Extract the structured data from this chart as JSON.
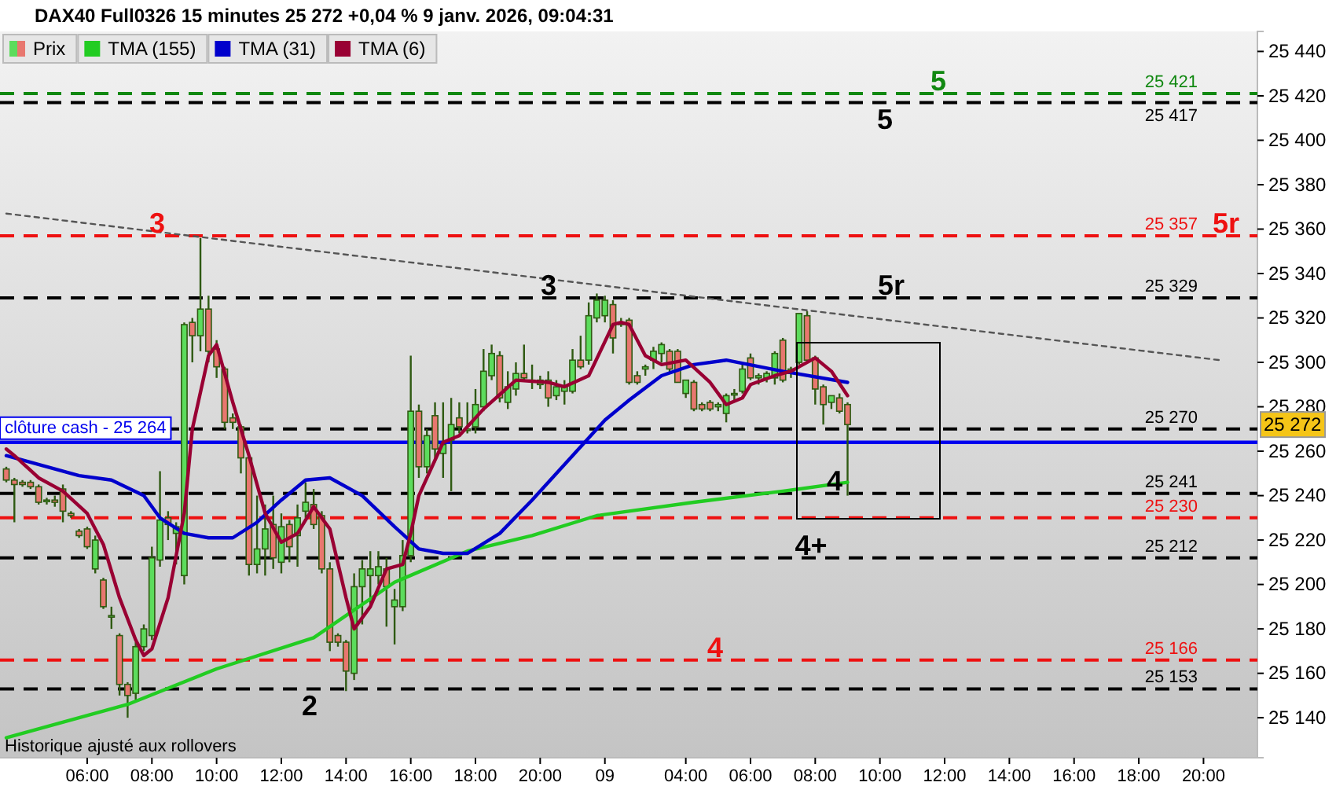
{
  "chart_data": {
    "type": "candlestick",
    "title": "DAX40 Full0326 15 minutes 25 272 +0,04 % 9 janv. 2026, 09:04:31",
    "categories": [
      null,
      null,
      null,
      null,
      null,
      null,
      null,
      null,
      null,
      null,
      "06:00",
      null,
      null,
      null,
      null,
      null,
      null,
      null,
      "08:00",
      null,
      null,
      null,
      null,
      null,
      null,
      null,
      "10:00",
      null,
      null,
      null,
      null,
      null,
      null,
      null,
      "12:00",
      null,
      null,
      null,
      null,
      null,
      null,
      null,
      "14:00",
      null,
      null,
      null,
      null,
      null,
      null,
      null,
      "16:00",
      null,
      null,
      null,
      null,
      null,
      null,
      null,
      "18:00",
      null,
      null,
      null,
      null,
      null,
      null,
      null,
      "20:00",
      null,
      null,
      null,
      null,
      null,
      null,
      null,
      "09",
      null,
      null,
      null,
      null,
      null,
      null,
      null,
      null,
      null,
      "04:00",
      null,
      null,
      null,
      null,
      null,
      null,
      null,
      "06:00",
      null,
      null,
      null,
      null,
      null,
      null,
      null,
      "08:00",
      null,
      null,
      null,
      null,
      null,
      null,
      null,
      "10:00",
      null,
      null,
      null,
      null,
      null,
      null,
      null,
      "12:00",
      null,
      null,
      null,
      null,
      null,
      null,
      null,
      "14:00",
      null,
      null,
      null,
      null,
      null,
      null,
      null,
      "16:00",
      null,
      null,
      null,
      null,
      null,
      null,
      null,
      "18:00",
      null,
      null,
      null,
      null,
      null,
      null,
      null,
      "20:00",
      null,
      null
    ],
    "ylim": [
      25122,
      25449
    ],
    "yticks": [
      {
        "value": 25140,
        "label": "25 140"
      },
      {
        "value": 25160,
        "label": "25 160"
      },
      {
        "value": 25180,
        "label": "25 180"
      },
      {
        "value": 25200,
        "label": "25 200"
      },
      {
        "value": 25220,
        "label": "25 220"
      },
      {
        "value": 25240,
        "label": "25 240"
      },
      {
        "value": 25260,
        "label": "25 260"
      },
      {
        "value": 25280,
        "label": "25 280"
      },
      {
        "value": 25300,
        "label": "25 300"
      },
      {
        "value": 25320,
        "label": "25 320"
      },
      {
        "value": 25340,
        "label": "25 340"
      },
      {
        "value": 25360,
        "label": "25 360"
      },
      {
        "value": 25380,
        "label": "25 380"
      },
      {
        "value": 25400,
        "label": "25 400"
      },
      {
        "value": 25420,
        "label": "25 420"
      },
      {
        "value": 25440,
        "label": "25 440"
      }
    ],
    "tick_labels": true,
    "legend": "top left",
    "series": [
      {
        "name": "Prix",
        "ohlc": [
          [
            25252,
            25253,
            25246,
            25247
          ],
          [
            25247,
            25248,
            25228,
            25245
          ],
          [
            25246,
            25247,
            25244,
            25245
          ],
          [
            25246,
            25247,
            25243,
            25244
          ],
          [
            25244,
            25245,
            25236,
            25237
          ],
          [
            25238,
            25239,
            25236,
            25238
          ],
          [
            25238,
            25240,
            25235,
            25237
          ],
          [
            25243,
            25245,
            25228,
            25233
          ],
          [
            25232,
            25233,
            25230,
            25231
          ],
          [
            25224,
            25225,
            25221,
            25222
          ],
          [
            25225,
            25226,
            25216,
            25217
          ],
          [
            25207,
            25222,
            25205,
            25220
          ],
          [
            25202,
            25203,
            25189,
            25190
          ],
          [
            25186,
            25190,
            25180,
            25186
          ],
          [
            25177,
            25178,
            25150,
            25155
          ],
          [
            25155,
            25156,
            25140,
            25150
          ],
          [
            25151,
            25174,
            25148,
            25172
          ],
          [
            25172,
            25182,
            25170,
            25180
          ],
          [
            25177,
            25217,
            25175,
            25212
          ],
          [
            25211,
            25251,
            25208,
            25229
          ],
          [
            25230,
            25233,
            25220,
            25227
          ],
          [
            25223,
            25228,
            25209,
            25226
          ],
          [
            25204,
            25318,
            25200,
            25317
          ],
          [
            25318,
            25320,
            25300,
            25312
          ],
          [
            25312,
            25356,
            25305,
            25324
          ],
          [
            25324,
            25330,
            25300,
            25305
          ],
          [
            25306,
            25310,
            25293,
            25298
          ],
          [
            25297,
            25298,
            25270,
            25273
          ],
          [
            25275,
            25277,
            25270,
            25273
          ],
          [
            25271,
            25272,
            25250,
            25257
          ],
          [
            25257,
            25258,
            25204,
            25209
          ],
          [
            25209,
            25240,
            25205,
            25216
          ],
          [
            25216,
            25236,
            25204,
            25225
          ],
          [
            25227,
            25240,
            25207,
            25212
          ],
          [
            25210,
            25232,
            25205,
            25226
          ],
          [
            25227,
            25229,
            25210,
            25217
          ],
          [
            25222,
            25236,
            25208,
            25230
          ],
          [
            25233,
            25246,
            25230,
            25237
          ],
          [
            25236,
            25243,
            25225,
            25227
          ],
          [
            25231,
            25233,
            25205,
            25207
          ],
          [
            25207,
            25210,
            25170,
            25174
          ],
          [
            25177,
            25178,
            25172,
            25174
          ],
          [
            25174,
            25175,
            25152,
            25161
          ],
          [
            25160,
            25205,
            25157,
            25199
          ],
          [
            25199,
            25211,
            25182,
            25207
          ],
          [
            25204,
            25215,
            25190,
            25207
          ],
          [
            25204,
            25215,
            25200,
            25208
          ],
          [
            25207,
            25212,
            25181,
            25199
          ],
          [
            25190,
            25198,
            25173,
            25193
          ],
          [
            25190,
            25220,
            25188,
            25213
          ],
          [
            25213,
            25303,
            25210,
            25278
          ],
          [
            25278,
            25281,
            25248,
            25253
          ],
          [
            25253,
            25270,
            25250,
            25267
          ],
          [
            25276,
            25282,
            25255,
            25261
          ],
          [
            25259,
            25282,
            25248,
            25263
          ],
          [
            25265,
            25284,
            25242,
            25272
          ],
          [
            25275,
            25282,
            25268,
            25271
          ],
          [
            25270,
            25282,
            25268,
            25270
          ],
          [
            25271,
            25288,
            25268,
            25281
          ],
          [
            25280,
            25306,
            25278,
            25296
          ],
          [
            25294,
            25308,
            25292,
            25304
          ],
          [
            25303,
            25305,
            25282,
            25284
          ],
          [
            25282,
            25296,
            25279,
            25289
          ],
          [
            25288,
            25300,
            25285,
            25295
          ],
          [
            25295,
            25308,
            25292,
            25293
          ],
          [
            25292,
            25299,
            25288,
            25292
          ],
          [
            25290,
            25294,
            25288,
            25292
          ],
          [
            25292,
            25296,
            25280,
            25284
          ],
          [
            25285,
            25292,
            25283,
            25289
          ],
          [
            25287,
            25292,
            25281,
            25289
          ],
          [
            25287,
            25306,
            25286,
            25301
          ],
          [
            25301,
            25312,
            25297,
            25298
          ],
          [
            25301,
            25327,
            25299,
            25321
          ],
          [
            25320,
            25331,
            25318,
            25328
          ],
          [
            25321,
            25330,
            25318,
            25328
          ],
          [
            25326,
            25328,
            25304,
            25311
          ],
          [
            25318,
            25320,
            25316,
            25317
          ],
          [
            25319,
            25320,
            25290,
            25291
          ],
          [
            25294,
            25296,
            25290,
            25291
          ],
          [
            25297,
            25299,
            25294,
            25298
          ],
          [
            25301,
            25307,
            25297,
            25305
          ],
          [
            25304,
            25309,
            25300,
            25308
          ],
          [
            25305,
            25306,
            25295,
            25297
          ],
          [
            25305,
            25306,
            25291,
            25291
          ],
          [
            25286,
            25292,
            25284,
            25292
          ],
          [
            25291,
            25292,
            25278,
            25279
          ],
          [
            25281,
            25282,
            25278,
            25279
          ],
          [
            25282,
            25283,
            25278,
            25279
          ],
          [
            25280,
            25282,
            25278,
            25281
          ],
          [
            25277,
            25286,
            25273,
            25285
          ],
          [
            25286,
            25288,
            25283,
            25286
          ],
          [
            25287,
            25299,
            25286,
            25297
          ],
          [
            25302,
            25304,
            25292,
            25293
          ],
          [
            25293,
            25295,
            25290,
            25294
          ],
          [
            25293,
            25296,
            25291,
            25295
          ],
          [
            25293,
            25305,
            25290,
            25304
          ],
          [
            25310,
            25311,
            25291,
            25292
          ],
          [
            25295,
            25298,
            25293,
            25297
          ],
          [
            25300,
            25322,
            25299,
            25322
          ],
          [
            25321,
            25323,
            25300,
            25301
          ],
          [
            25302,
            25303,
            25281,
            25288
          ],
          [
            25289,
            25290,
            25272,
            25281
          ],
          [
            25282,
            25285,
            25279,
            25285
          ],
          [
            25284,
            25286,
            25277,
            25278
          ],
          [
            25281,
            25282,
            25240,
            25272
          ],
          null,
          null,
          null,
          null,
          null,
          null,
          null,
          null,
          null,
          null,
          null,
          null,
          null,
          null,
          null,
          null,
          null,
          null,
          null,
          null,
          null,
          null,
          null,
          null,
          null,
          null,
          null,
          null,
          null,
          null,
          null,
          null,
          null,
          null,
          null,
          null,
          null,
          null,
          null,
          null,
          null,
          null,
          null,
          null,
          null,
          null
        ]
      },
      {
        "name": "TMA (155)",
        "type": "line",
        "color": "#22cc22",
        "values": [
          25131,
          null,
          null,
          null,
          null,
          null,
          null,
          null,
          null,
          null,
          null,
          null,
          null,
          null,
          null,
          25146,
          null,
          null,
          null,
          null,
          null,
          null,
          null,
          null,
          null,
          null,
          25162,
          null,
          null,
          null,
          null,
          null,
          null,
          null,
          null,
          null,
          null,
          null,
          25176,
          null,
          null,
          null,
          null,
          null,
          null,
          null,
          null,
          null,
          25201,
          null,
          null,
          null,
          null,
          null,
          null,
          null,
          null,
          25215,
          null,
          null,
          null,
          null,
          null,
          null,
          null,
          25222,
          null,
          null,
          null,
          null,
          null,
          null,
          null,
          25231,
          null,
          null,
          null,
          null,
          null,
          null,
          null,
          null,
          null,
          null,
          null,
          25237,
          null,
          null,
          null,
          null,
          null,
          null,
          null,
          null,
          null,
          null,
          25242,
          null,
          null,
          null,
          null,
          null,
          null,
          null,
          25246,
          null,
          null,
          null,
          null,
          null,
          null,
          null,
          null,
          null,
          null,
          null,
          null,
          null,
          null,
          null,
          null,
          null,
          null,
          null,
          null,
          null,
          null,
          null,
          null,
          null,
          null,
          null,
          null,
          null,
          null,
          null,
          null,
          null,
          null,
          null,
          null,
          null,
          null,
          null,
          null,
          null,
          null,
          null,
          null,
          null,
          null
        ]
      },
      {
        "name": "TMA (31)",
        "type": "line",
        "color": "#0000cc",
        "values": [
          25258,
          null,
          null,
          25255,
          null,
          null,
          null,
          null,
          null,
          25249,
          null,
          null,
          null,
          25247,
          null,
          null,
          null,
          25240,
          null,
          25230,
          null,
          null,
          25223,
          null,
          null,
          25221,
          null,
          null,
          25221,
          null,
          null,
          25228,
          null,
          null,
          25238,
          null,
          null,
          25247,
          null,
          null,
          25248,
          null,
          null,
          null,
          25240,
          null,
          null,
          null,
          25226,
          null,
          null,
          25216,
          null,
          null,
          25214,
          null,
          null,
          25214,
          null,
          null,
          null,
          25223,
          null,
          null,
          null,
          25238,
          null,
          null,
          null,
          null,
          25258,
          null,
          null,
          null,
          25274,
          null,
          null,
          25283,
          null,
          null,
          null,
          25294,
          null,
          null,
          null,
          25299,
          null,
          null,
          null,
          25301,
          null,
          null,
          null,
          null,
          null,
          null,
          25296,
          null,
          null,
          null,
          null,
          null,
          null,
          null,
          25291,
          null,
          null,
          null,
          null,
          null,
          null,
          null,
          null,
          null,
          null,
          null,
          null,
          null,
          null,
          null,
          null,
          null,
          null,
          null,
          null,
          null,
          null,
          null,
          null,
          null,
          null,
          null,
          null,
          null,
          null,
          null,
          null,
          null,
          null,
          null,
          null,
          null,
          null,
          null,
          null,
          null,
          null,
          null,
          null,
          null,
          null
        ]
      },
      {
        "name": "TMA (6)",
        "type": "line",
        "color": "#990033",
        "values": [
          25261,
          25258,
          null,
          null,
          25248,
          null,
          null,
          25242,
          null,
          null,
          25232,
          null,
          25218,
          null,
          25194,
          null,
          25175,
          25168,
          25171,
          null,
          25194,
          null,
          25232,
          25270,
          null,
          25303,
          25308,
          null,
          25282,
          null,
          25258,
          null,
          25232,
          null,
          25219,
          null,
          25223,
          null,
          25235,
          null,
          25225,
          null,
          25194,
          25180,
          null,
          25190,
          null,
          25207,
          null,
          25209,
          25223,
          25240,
          null,
          null,
          25264,
          null,
          25267,
          null,
          null,
          25279,
          null,
          null,
          null,
          25292,
          null,
          null,
          null,
          25291,
          null,
          25289,
          null,
          null,
          25294,
          null,
          null,
          25317,
          25318,
          25317,
          null,
          25303,
          null,
          25299,
          null,
          null,
          25301,
          null,
          null,
          25291,
          null,
          25281,
          null,
          25284,
          25290,
          null,
          null,
          25294,
          null,
          25296,
          null,
          null,
          25302,
          null,
          25296,
          null,
          25285,
          null,
          null,
          null,
          null,
          null,
          null,
          null,
          null,
          null,
          null,
          null,
          null,
          null,
          null,
          null,
          null,
          null,
          null,
          null,
          null,
          null,
          null,
          null,
          null,
          null,
          null,
          null,
          null,
          null,
          null,
          null,
          null,
          null,
          null,
          null,
          null,
          null,
          null,
          null,
          null,
          null,
          null,
          null,
          null,
          null,
          null
        ]
      },
      {
        "type": "line",
        "color": "#555555",
        "line_style": "dotted",
        "values": [
          25367,
          null,
          null,
          null,
          null,
          null,
          null,
          null,
          null,
          null,
          null,
          null,
          null,
          null,
          null,
          null,
          null,
          null,
          null,
          null,
          null,
          null,
          null,
          null,
          null,
          null,
          null,
          null,
          null,
          null,
          null,
          null,
          null,
          null,
          null,
          null,
          null,
          null,
          null,
          null,
          null,
          null,
          null,
          null,
          null,
          null,
          null,
          null,
          null,
          null,
          null,
          null,
          null,
          null,
          null,
          null,
          null,
          null,
          null,
          null,
          null,
          null,
          null,
          null,
          null,
          null,
          null,
          null,
          null,
          null,
          null,
          null,
          null,
          null,
          null,
          null,
          null,
          null,
          null,
          null,
          null,
          null,
          null,
          null,
          null,
          null,
          null,
          null,
          null,
          null,
          null,
          null,
          null,
          null,
          null,
          null,
          null,
          null,
          null,
          null,
          null,
          null,
          null,
          null,
          null,
          null,
          null,
          null,
          null,
          null,
          null,
          null,
          null,
          null,
          null,
          null,
          null,
          null,
          null,
          null,
          null,
          null,
          null,
          null,
          null,
          null,
          null,
          null,
          null,
          null,
          null,
          null,
          null,
          null,
          null,
          null,
          null,
          null,
          null,
          null,
          null,
          null,
          null,
          null,
          null,
          null,
          null,
          null,
          null,
          null,
          25301
        ]
      }
    ],
    "ref_lines": [
      {
        "axis": "y",
        "value": 25421,
        "label": "25 421",
        "color": "#118811",
        "line_style": "dashed"
      },
      {
        "axis": "y",
        "value": 25417,
        "label": "25 417",
        "color": "#000000",
        "line_style": "dashed"
      },
      {
        "axis": "y",
        "value": 25357,
        "label": "25 357",
        "color": "#ee1111",
        "line_style": "dashed"
      },
      {
        "axis": "y",
        "value": 25329,
        "label": "25 329",
        "color": "#000000",
        "line_style": "dashed"
      },
      {
        "axis": "y",
        "value": 25270,
        "label": "25 270",
        "color": "#000000",
        "line_style": "dashed"
      },
      {
        "axis": "y",
        "value": 25264,
        "label": "clôture cash -  25 264",
        "color": "#0000ee",
        "line_style": "solid"
      },
      {
        "axis": "y",
        "value": 25241,
        "label": "25 241",
        "color": "#000000",
        "line_style": "dashed"
      },
      {
        "axis": "y",
        "value": 25230,
        "label": "25 230",
        "color": "#ee1111",
        "line_style": "dashed"
      },
      {
        "axis": "y",
        "value": 25212,
        "label": "25 212",
        "color": "#000000",
        "line_style": "dashed"
      },
      {
        "axis": "y",
        "value": 25166,
        "label": "25 166",
        "color": "#ee1111",
        "line_style": "dashed"
      },
      {
        "axis": "y",
        "value": 25153,
        "label": "25 153",
        "color": "#000000",
        "line_style": "dashed"
      }
    ],
    "annotations": [
      {
        "text": "5",
        "y": 25417
      },
      {
        "text": "5",
        "y": 25421
      },
      {
        "text": "3",
        "y": 25357
      },
      {
        "text": "5r",
        "y": 25357
      },
      {
        "text": "3",
        "y": 25329
      },
      {
        "text": "5r",
        "y": 25329
      },
      {
        "text": "4",
        "y": 25241
      },
      {
        "text": "4+",
        "y": 25212
      },
      {
        "text": "4",
        "y": 25166
      },
      {
        "text": "2",
        "y": 25153
      },
      "25 272",
      "Historique ajusté aux rollovers"
    ]
  }
}
